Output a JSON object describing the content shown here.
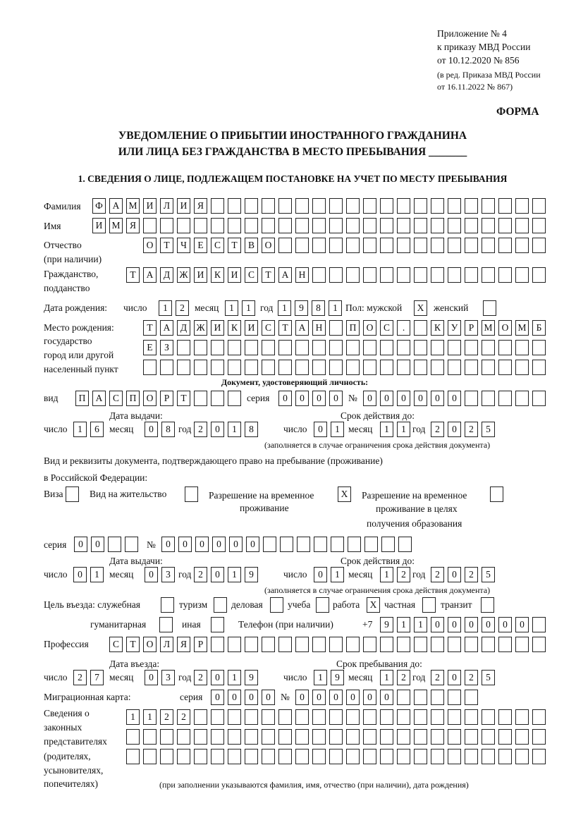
{
  "header": {
    "appendix_1": "Приложение № 4",
    "appendix_2": "к приказу МВД России",
    "appendix_3": "от 10.12.2020 № 856",
    "appendix_4": "(в ред. Приказа МВД России",
    "appendix_5": "от 16.11.2022 № 867)",
    "forma": "ФОРМА",
    "title_1": "УВЕДОМЛЕНИЕ О ПРИБЫТИИ ИНОСТРАННОГО ГРАЖДАНИНА",
    "title_2": "ИЛИ ЛИЦА БЕЗ ГРАЖДАНСТВА В МЕСТО ПРЕБЫВАНИЯ _______",
    "section_1": "1. СВЕДЕНИЯ О ЛИЦЕ, ПОДЛЕЖАЩЕМ ПОСТАНОВКЕ НА УЧЕТ ПО МЕСТУ ПРЕБЫВАНИЯ"
  },
  "labels": {
    "surname": "Фамилия",
    "name": "Имя",
    "patronymic": "Отчество",
    "patronymic_2": "(при наличии)",
    "citizenship": "Гражданство,",
    "citizenship_2": "подданство",
    "birth_date": "Дата рождения:",
    "day": "число",
    "month": "месяц",
    "year": "год",
    "sex": "Пол: мужской",
    "female": "женский",
    "birthplace_1": "Место рождения:",
    "birthplace_2": "государство",
    "birthplace_3": "город или другой",
    "birthplace_4": "населенный пункт",
    "id_doc": "Документ, удостоверяющий личность:",
    "kind": "вид",
    "series": "серия",
    "number": "№",
    "issue_date": "Дата выдачи:",
    "valid_until": "Срок действия до:",
    "validity_note": "(заполняется в случае ограничения срока действия документа)",
    "stay_doc_1": "Вид и реквизиты документа, подтверждающего право на пребывание (проживание)",
    "stay_doc_2": "в Российской Федерации:",
    "visa": "Виза",
    "residence": "Вид на жительство",
    "temp_residence_1": "Разрешение на временное",
    "temp_residence_2": "проживание",
    "temp_edu_1": "Разрешение на временное",
    "temp_edu_2": "проживание в целях",
    "temp_edu_3": "получения образования",
    "purpose": "Цель въезда: служебная",
    "tourism": "туризм",
    "business": "деловая",
    "study": "учеба",
    "work": "работа",
    "private": "частная",
    "transit": "транзит",
    "humanitarian": "гуманитарная",
    "other": "иная",
    "phone": "Телефон (при наличии)",
    "phone_prefix": "+7",
    "profession": "Профессия",
    "entry_date": "Дата въезда:",
    "stay_until": "Срок пребывания до:",
    "migration_card": "Миграционная карта:",
    "reps_1": "Сведения о",
    "reps_2": "законных",
    "reps_3": "представителях",
    "reps_4": "(родителях,",
    "reps_5": "усыновителях,",
    "reps_6": "попечителях)",
    "reps_note": "(при заполнении указываются фамилия, имя, отчество (при наличии), дата рождения)"
  },
  "fields": {
    "surname": "ФАМИЛИЯ",
    "name": "ИМЯ",
    "patronymic": "ОТЧЕСТВО",
    "citizenship": "ТАДЖИКИСТАН",
    "birth_day": "12",
    "birth_month": "11",
    "birth_year": "1981",
    "sex_male": "X",
    "sex_female": "",
    "birthplace_1": "ТАДЖИКИСТАН ПОС. КУРМОМБ",
    "birthplace_2": "ЕЗ",
    "birthplace_3": "",
    "id_kind": "ПАСПОРТ",
    "id_series": "0000",
    "id_number": "000000",
    "id_issue_day": "16",
    "id_issue_month": "08",
    "id_issue_year": "2018",
    "id_valid_day": "01",
    "id_valid_month": "11",
    "id_valid_year": "2025",
    "visa": "",
    "residence": "",
    "temp_residence": "X",
    "temp_edu": "",
    "stay_series": "00",
    "stay_number": "000000",
    "stay_issue_day": "01",
    "stay_issue_month": "03",
    "stay_issue_year": "2019",
    "stay_valid_day": "01",
    "stay_valid_month": "12",
    "stay_valid_year": "2025",
    "purpose_official": "",
    "purpose_tourism": "",
    "purpose_business": "",
    "purpose_study": "",
    "purpose_work": "X",
    "purpose_private": "",
    "purpose_transit": "",
    "purpose_humanitarian": "",
    "purpose_other": "",
    "phone": "911000000",
    "profession": "СТОЛЯР",
    "entry_day": "27",
    "entry_month": "03",
    "entry_year": "2019",
    "stay_until_day": "19",
    "stay_until_month": "12",
    "stay_until_year": "2025",
    "mc_series": "0000",
    "mc_number": "000000",
    "reps_1": "1122",
    "reps_2": "",
    "reps_3": ""
  }
}
